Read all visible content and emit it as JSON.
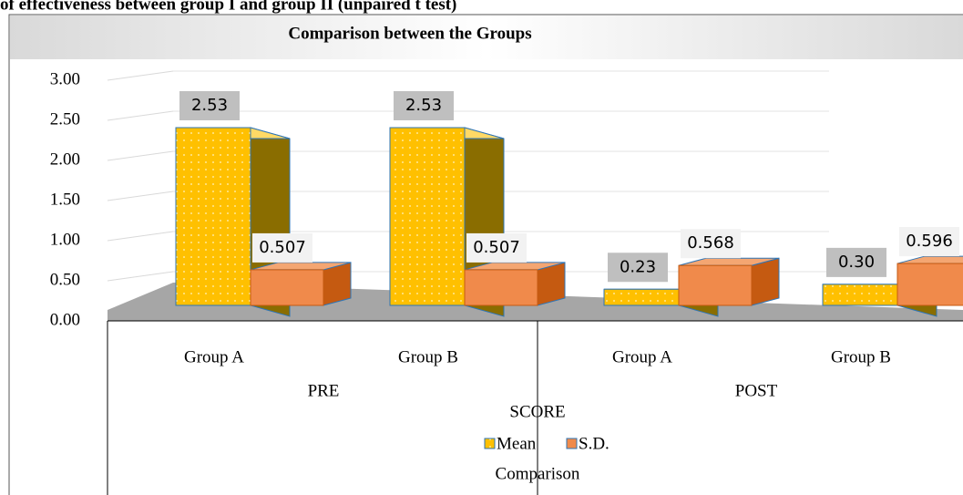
{
  "page_title": "of effectiveness between group I and group II (unpaired t test)",
  "chart_data": {
    "type": "bar3d",
    "title": "Comparison between the Groups",
    "categories": [
      "Group A",
      "Group B",
      "Group A",
      "Group B"
    ],
    "category_groups": [
      "PRE",
      "POST"
    ],
    "x_label": "SCORE",
    "footer": "Comparison",
    "series": [
      {
        "name": "Mean",
        "color": "#ffc000",
        "values": [
          2.53,
          2.53,
          0.23,
          0.3
        ],
        "value_labels": [
          "2.53",
          "2.53",
          "0.23",
          "0.30"
        ]
      },
      {
        "name": "S.D.",
        "color": "#ed7d31",
        "values": [
          0.507,
          0.507,
          0.568,
          0.596
        ]
      }
    ],
    "ylim": [
      0,
      3
    ],
    "yticks": [
      {
        "value": 0,
        "label": "0.00"
      },
      {
        "value": 0.5,
        "label": "0.50"
      },
      {
        "value": 1,
        "label": "1.00"
      },
      {
        "value": 1.5,
        "label": "1.50"
      },
      {
        "value": 2,
        "label": "2.00"
      },
      {
        "value": 2.5,
        "label": "2.50"
      },
      {
        "value": 3,
        "label": "3.00"
      }
    ],
    "grid": true
  }
}
